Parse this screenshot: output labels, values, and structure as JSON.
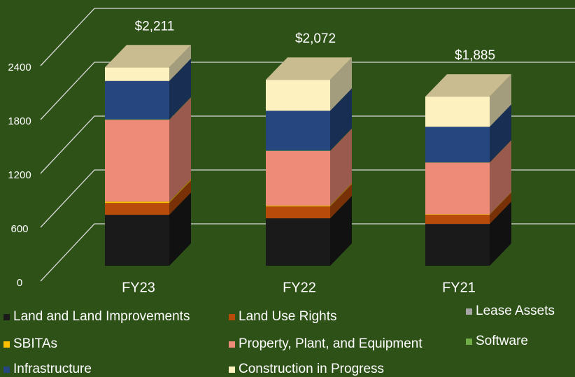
{
  "chart_data": {
    "type": "stacked-bar-3d",
    "categories": [
      "FY23",
      "FY22",
      "FY21"
    ],
    "series": [
      {
        "name": "Land and Land Improvements",
        "color": "#1a1a1a",
        "values": [
          568,
          529,
          467
        ]
      },
      {
        "name": "Land Use Rights",
        "color": "#b84a0a",
        "values": [
          132,
          132,
          101
        ]
      },
      {
        "name": "Lease Assets",
        "color": "#a5a5a5",
        "values": [
          0,
          0,
          0
        ]
      },
      {
        "name": "SBITAs",
        "color": "#ffc000",
        "values": [
          15,
          10,
          5
        ]
      },
      {
        "name": "Property, Plant, and Equipment",
        "color": "#ee8a78",
        "values": [
          911,
          607,
          576
        ]
      },
      {
        "name": "Software",
        "color": "#70ad47",
        "values": [
          5,
          5,
          3
        ]
      },
      {
        "name": "Infrastructure",
        "color": "#26467f",
        "values": [
          428,
          444,
          397
        ]
      },
      {
        "name": "Construction in Progress",
        "color": "#fdf1c0",
        "values": [
          152,
          345,
          336
        ]
      }
    ],
    "totals": [
      2211,
      2072,
      1885
    ],
    "total_labels": [
      "$2,211",
      "$2,072",
      "$1,885"
    ],
    "ylim": [
      0,
      2400
    ],
    "yticks": [
      0,
      600,
      1200,
      1800,
      2400
    ],
    "grid": true
  }
}
